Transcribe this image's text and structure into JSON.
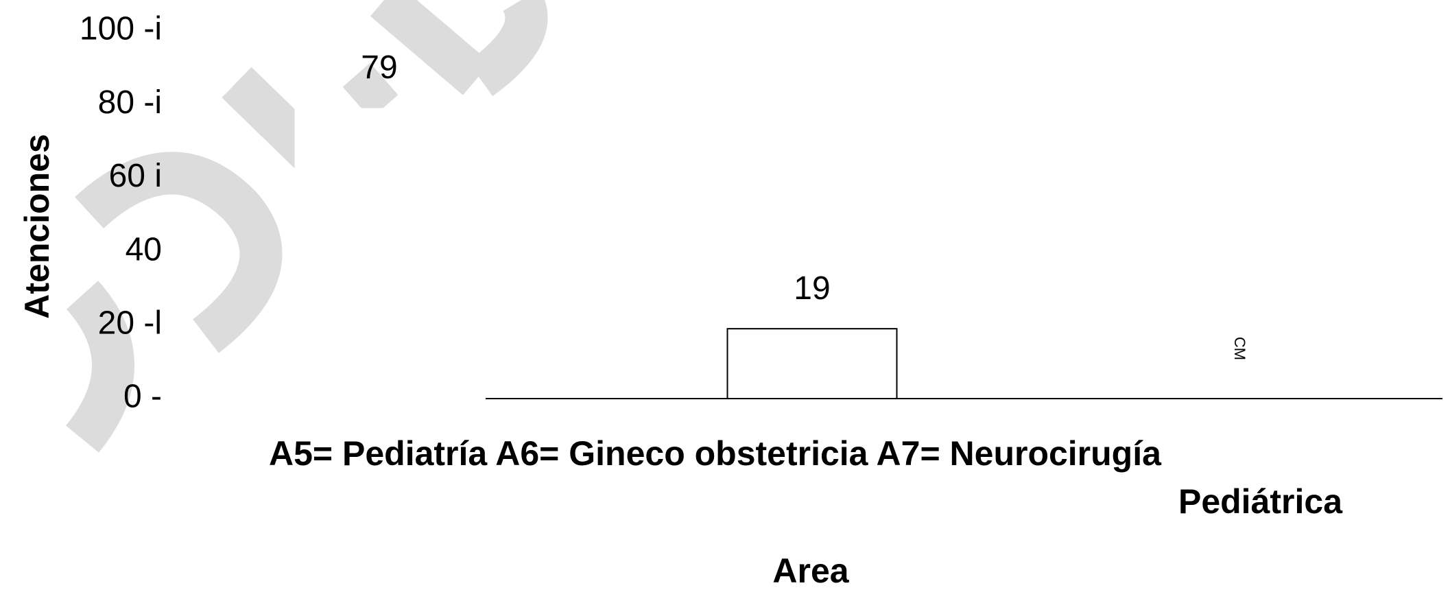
{
  "chart_data": {
    "type": "bar",
    "ylabel": "Atenciones",
    "xlabel": "Area",
    "legend_text": [
      "A5= Pediatría A6= Gineco obstetricia A7= Neurocirugía",
      "Pediátrica"
    ],
    "categories": [
      null,
      null
    ],
    "values": [
      79,
      19
    ],
    "annotation": "CM",
    "color": "#ffffff",
    "ylim": [
      0,
      100
    ],
    "yticks": [
      {
        "value": 0,
        "label": "0 -"
      },
      {
        "value": 20,
        "label": "20 -l"
      },
      40,
      {
        "value": 60,
        "label": "60 i"
      },
      {
        "value": 80,
        "label": "80 -i"
      },
      {
        "value": 100,
        "label": "100 -i"
      }
    ]
  }
}
